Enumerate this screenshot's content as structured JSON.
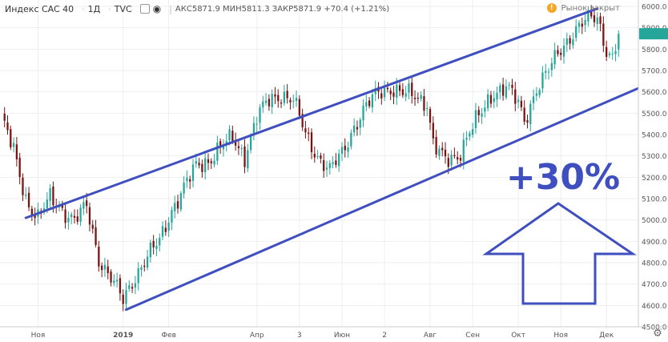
{
  "header": {
    "title": "Индекс CAC 40",
    "interval": "1Д",
    "source": "TVC",
    "ohlc_text": "АКС5871.9  МИН5811.3  ЗАКР5871.9  +70.4 (+1.21%)"
  },
  "market_status": "Рынок закрыт",
  "colors": {
    "up": "#26a69a",
    "down": "#7a1212",
    "channel": "#3f4fbf",
    "annotation": "#3f4fbf",
    "grid": "#eeeeee"
  },
  "chart_data": {
    "type": "candlestick",
    "title": "",
    "xlabel": "",
    "ylabel": "",
    "ylim": [
      4500,
      6030
    ],
    "y_ticks": [
      4500,
      4600,
      4700,
      4800,
      4900,
      5000,
      5100,
      5200,
      5300,
      5400,
      5500,
      5600,
      5700,
      5800,
      5900,
      6000
    ],
    "x_ticks": [
      "Ноя",
      "2019",
      "Фев",
      "Апр",
      "3",
      "Июн",
      "2",
      "Авг",
      "Сен",
      "Окт",
      "Ноя",
      "Дек"
    ],
    "x_tick_index": [
      12,
      40,
      55,
      84,
      98,
      112,
      126,
      141,
      155,
      170,
      184,
      199
    ],
    "n_days": 210,
    "anchors": [
      [
        0,
        5480
      ],
      [
        4,
        5320
      ],
      [
        8,
        5100
      ],
      [
        12,
        5010
      ],
      [
        16,
        5100
      ],
      [
        20,
        5050
      ],
      [
        24,
        5000
      ],
      [
        28,
        5060
      ],
      [
        32,
        4820
      ],
      [
        36,
        4730
      ],
      [
        40,
        4620
      ],
      [
        44,
        4740
      ],
      [
        48,
        4830
      ],
      [
        52,
        4900
      ],
      [
        56,
        5050
      ],
      [
        60,
        5150
      ],
      [
        64,
        5250
      ],
      [
        68,
        5280
      ],
      [
        72,
        5340
      ],
      [
        76,
        5380
      ],
      [
        80,
        5300
      ],
      [
        84,
        5480
      ],
      [
        88,
        5560
      ],
      [
        92,
        5590
      ],
      [
        96,
        5560
      ],
      [
        100,
        5400
      ],
      [
        104,
        5300
      ],
      [
        108,
        5230
      ],
      [
        112,
        5310
      ],
      [
        116,
        5440
      ],
      [
        120,
        5530
      ],
      [
        124,
        5600
      ],
      [
        128,
        5620
      ],
      [
        132,
        5590
      ],
      [
        136,
        5580
      ],
      [
        140,
        5550
      ],
      [
        142,
        5360
      ],
      [
        146,
        5270
      ],
      [
        150,
        5300
      ],
      [
        154,
        5420
      ],
      [
        158,
        5500
      ],
      [
        162,
        5600
      ],
      [
        166,
        5630
      ],
      [
        170,
        5540
      ],
      [
        172,
        5460
      ],
      [
        176,
        5620
      ],
      [
        180,
        5700
      ],
      [
        184,
        5800
      ],
      [
        188,
        5880
      ],
      [
        192,
        5930
      ],
      [
        196,
        5950
      ],
      [
        199,
        5800
      ],
      [
        201,
        5760
      ],
      [
        203,
        5871.9
      ]
    ],
    "overlays": {
      "channel_upper": {
        "from": [
          8,
          5010
        ],
        "to": [
          196,
          5990
        ]
      },
      "channel_lower": {
        "from": [
          41,
          4580
        ],
        "to": [
          210,
          5620
        ]
      }
    },
    "annotation": {
      "text": "+30%",
      "arrow": "up"
    }
  }
}
